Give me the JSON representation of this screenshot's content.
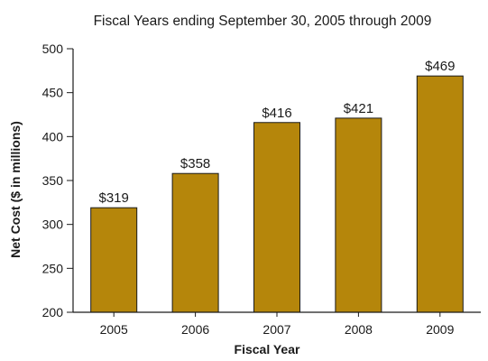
{
  "chart_data": {
    "type": "bar",
    "title": "Fiscal Years ending September 30, 2005 through 2009",
    "xlabel": "Fiscal Year",
    "ylabel": "Net Cost ($ in millions)",
    "categories": [
      "2005",
      "2006",
      "2007",
      "2008",
      "2009"
    ],
    "values": [
      319,
      358,
      416,
      421,
      469
    ],
    "data_labels": [
      "$319",
      "$358",
      "$416",
      "$421",
      "$469"
    ],
    "ylim": [
      200,
      500
    ],
    "yticks": [
      200,
      250,
      300,
      350,
      400,
      450,
      500
    ],
    "grid": false,
    "legend": "none",
    "colors": {
      "bar": "#b5860b",
      "bar_edge": "#1a1a1a",
      "axis": "#1a1a1a"
    }
  }
}
